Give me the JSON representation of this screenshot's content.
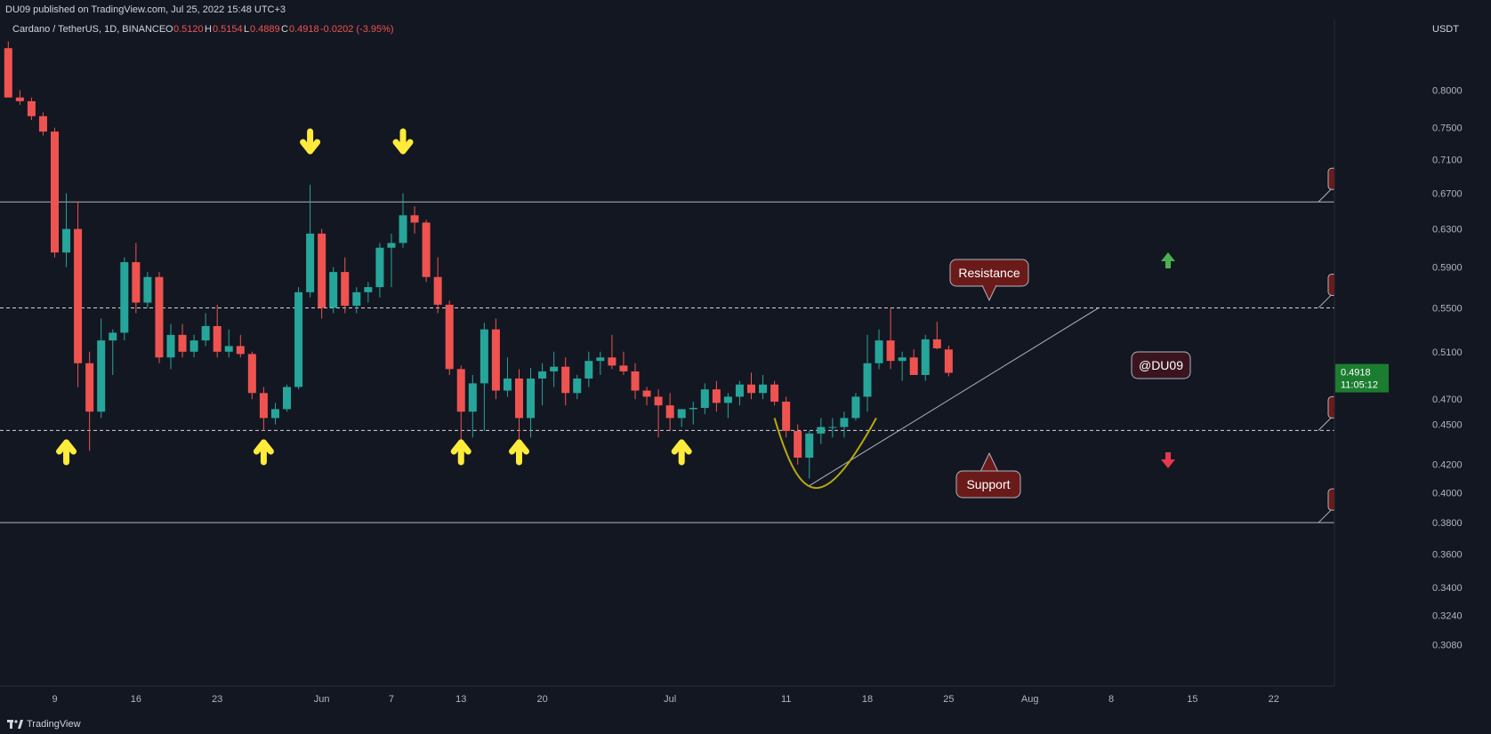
{
  "header": {
    "published": "DU09 published on TradingView.com, Jul 25, 2022 15:48 UTC+3"
  },
  "legend": {
    "symbol": "Cardano / TetherUS, 1D, BINANCE",
    "o_label": "O",
    "o_value": "0.5120",
    "h_label": "H",
    "h_value": "0.5154",
    "l_label": "L",
    "l_value": "0.4889",
    "c_label": "C",
    "c_value": "0.4918",
    "change": "-0.0202 (-3.95%)"
  },
  "footer": {
    "brand": "TradingView"
  },
  "colors": {
    "up": "#26a69a",
    "down": "#ef5350",
    "arrow": "#ffeb3b",
    "label_bg": "#6b1a1a",
    "price_badge": "#1b7d2f"
  },
  "annotations": {
    "resistance": "Resistance",
    "support": "Support",
    "author": "@DU09",
    "levels": [
      "0.6600",
      "0.5500",
      "0.4454",
      "0.3800"
    ],
    "arrows_down_x": [
      "2022-05-31",
      "2022-06-08"
    ],
    "arrows_up_x": [
      "2022-05-10",
      "2022-05-27",
      "2022-06-13",
      "2022-06-18",
      "2022-07-02"
    ]
  },
  "price_badge": {
    "price": "0.4918",
    "countdown": "11:05:12"
  },
  "chart_data": {
    "type": "candlestick",
    "title": "Cardano / TetherUS, 1D, BINANCE",
    "y_unit": "USDT",
    "y_scale": "log",
    "ylim": [
      0.29,
      0.86
    ],
    "y_ticks": [
      "0.8000",
      "0.7500",
      "0.7100",
      "0.6700",
      "0.6300",
      "0.5900",
      "0.5500",
      "0.5100",
      "0.4700",
      "0.4500",
      "0.4200",
      "0.4000",
      "0.3800",
      "0.3600",
      "0.3400",
      "0.3240",
      "0.3080"
    ],
    "x_ticks": [
      {
        "label": "9",
        "date": "2022-05-09"
      },
      {
        "label": "16",
        "date": "2022-05-16"
      },
      {
        "label": "23",
        "date": "2022-05-23"
      },
      {
        "label": "Jun",
        "date": "2022-06-01"
      },
      {
        "label": "7",
        "date": "2022-06-07"
      },
      {
        "label": "13",
        "date": "2022-06-13"
      },
      {
        "label": "20",
        "date": "2022-06-20"
      },
      {
        "label": "Jul",
        "date": "2022-07-01"
      },
      {
        "label": "11",
        "date": "2022-07-11"
      },
      {
        "label": "18",
        "date": "2022-07-18"
      },
      {
        "label": "25",
        "date": "2022-07-25"
      },
      {
        "label": "Aug",
        "date": "2022-08-01"
      },
      {
        "label": "8",
        "date": "2022-08-08"
      },
      {
        "label": "15",
        "date": "2022-08-15"
      },
      {
        "label": "22",
        "date": "2022-08-22"
      }
    ],
    "horizontal_levels": [
      {
        "value": 0.66,
        "style": "solid",
        "label": "0.6600"
      },
      {
        "value": 0.55,
        "style": "dashed",
        "label": "0.5500"
      },
      {
        "value": 0.4454,
        "style": "dashed",
        "label": "0.4454"
      },
      {
        "value": 0.38,
        "style": "solid",
        "label": "0.3800"
      }
    ],
    "candles": [
      {
        "d": "2022-05-05",
        "o": 0.86,
        "h": 0.87,
        "l": 0.79,
        "c": 0.79
      },
      {
        "d": "2022-05-06",
        "o": 0.79,
        "h": 0.8,
        "l": 0.78,
        "c": 0.785
      },
      {
        "d": "2022-05-07",
        "o": 0.785,
        "h": 0.79,
        "l": 0.76,
        "c": 0.765
      },
      {
        "d": "2022-05-08",
        "o": 0.765,
        "h": 0.77,
        "l": 0.74,
        "c": 0.745
      },
      {
        "d": "2022-05-09",
        "o": 0.745,
        "h": 0.75,
        "l": 0.6,
        "c": 0.605
      },
      {
        "d": "2022-05-10",
        "o": 0.605,
        "h": 0.67,
        "l": 0.59,
        "c": 0.63
      },
      {
        "d": "2022-05-11",
        "o": 0.63,
        "h": 0.66,
        "l": 0.48,
        "c": 0.5
      },
      {
        "d": "2022-05-12",
        "o": 0.5,
        "h": 0.51,
        "l": 0.43,
        "c": 0.46
      },
      {
        "d": "2022-05-13",
        "o": 0.46,
        "h": 0.54,
        "l": 0.455,
        "c": 0.52
      },
      {
        "d": "2022-05-14",
        "o": 0.52,
        "h": 0.53,
        "l": 0.49,
        "c": 0.527
      },
      {
        "d": "2022-05-15",
        "o": 0.527,
        "h": 0.6,
        "l": 0.52,
        "c": 0.595
      },
      {
        "d": "2022-05-16",
        "o": 0.595,
        "h": 0.615,
        "l": 0.545,
        "c": 0.555
      },
      {
        "d": "2022-05-17",
        "o": 0.555,
        "h": 0.585,
        "l": 0.55,
        "c": 0.58
      },
      {
        "d": "2022-05-18",
        "o": 0.58,
        "h": 0.585,
        "l": 0.5,
        "c": 0.505
      },
      {
        "d": "2022-05-19",
        "o": 0.505,
        "h": 0.535,
        "l": 0.495,
        "c": 0.525
      },
      {
        "d": "2022-05-20",
        "o": 0.525,
        "h": 0.535,
        "l": 0.505,
        "c": 0.51
      },
      {
        "d": "2022-05-21",
        "o": 0.51,
        "h": 0.525,
        "l": 0.505,
        "c": 0.52
      },
      {
        "d": "2022-05-22",
        "o": 0.52,
        "h": 0.545,
        "l": 0.515,
        "c": 0.533
      },
      {
        "d": "2022-05-23",
        "o": 0.533,
        "h": 0.553,
        "l": 0.505,
        "c": 0.51
      },
      {
        "d": "2022-05-24",
        "o": 0.51,
        "h": 0.53,
        "l": 0.505,
        "c": 0.515
      },
      {
        "d": "2022-05-25",
        "o": 0.515,
        "h": 0.525,
        "l": 0.505,
        "c": 0.508
      },
      {
        "d": "2022-05-26",
        "o": 0.508,
        "h": 0.51,
        "l": 0.47,
        "c": 0.475
      },
      {
        "d": "2022-05-27",
        "o": 0.475,
        "h": 0.48,
        "l": 0.445,
        "c": 0.455
      },
      {
        "d": "2022-05-28",
        "o": 0.455,
        "h": 0.467,
        "l": 0.45,
        "c": 0.462
      },
      {
        "d": "2022-05-29",
        "o": 0.462,
        "h": 0.482,
        "l": 0.46,
        "c": 0.48
      },
      {
        "d": "2022-05-30",
        "o": 0.48,
        "h": 0.57,
        "l": 0.478,
        "c": 0.565
      },
      {
        "d": "2022-05-31",
        "o": 0.565,
        "h": 0.68,
        "l": 0.56,
        "c": 0.625
      },
      {
        "d": "2022-06-01",
        "o": 0.625,
        "h": 0.63,
        "l": 0.54,
        "c": 0.55
      },
      {
        "d": "2022-06-02",
        "o": 0.55,
        "h": 0.59,
        "l": 0.545,
        "c": 0.585
      },
      {
        "d": "2022-06-03",
        "o": 0.585,
        "h": 0.6,
        "l": 0.545,
        "c": 0.552
      },
      {
        "d": "2022-06-04",
        "o": 0.552,
        "h": 0.57,
        "l": 0.545,
        "c": 0.565
      },
      {
        "d": "2022-06-05",
        "o": 0.565,
        "h": 0.575,
        "l": 0.555,
        "c": 0.57
      },
      {
        "d": "2022-06-06",
        "o": 0.57,
        "h": 0.615,
        "l": 0.56,
        "c": 0.61
      },
      {
        "d": "2022-06-07",
        "o": 0.61,
        "h": 0.625,
        "l": 0.57,
        "c": 0.615
      },
      {
        "d": "2022-06-08",
        "o": 0.615,
        "h": 0.67,
        "l": 0.61,
        "c": 0.645
      },
      {
        "d": "2022-06-09",
        "o": 0.645,
        "h": 0.655,
        "l": 0.625,
        "c": 0.637
      },
      {
        "d": "2022-06-10",
        "o": 0.637,
        "h": 0.64,
        "l": 0.575,
        "c": 0.58
      },
      {
        "d": "2022-06-11",
        "o": 0.58,
        "h": 0.6,
        "l": 0.545,
        "c": 0.553
      },
      {
        "d": "2022-06-12",
        "o": 0.553,
        "h": 0.557,
        "l": 0.49,
        "c": 0.495
      },
      {
        "d": "2022-06-13",
        "o": 0.495,
        "h": 0.498,
        "l": 0.435,
        "c": 0.46
      },
      {
        "d": "2022-06-14",
        "o": 0.46,
        "h": 0.49,
        "l": 0.44,
        "c": 0.483
      },
      {
        "d": "2022-06-15",
        "o": 0.483,
        "h": 0.536,
        "l": 0.445,
        "c": 0.53
      },
      {
        "d": "2022-06-16",
        "o": 0.53,
        "h": 0.54,
        "l": 0.47,
        "c": 0.477
      },
      {
        "d": "2022-06-17",
        "o": 0.477,
        "h": 0.505,
        "l": 0.472,
        "c": 0.487
      },
      {
        "d": "2022-06-18",
        "o": 0.487,
        "h": 0.495,
        "l": 0.435,
        "c": 0.455
      },
      {
        "d": "2022-06-19",
        "o": 0.455,
        "h": 0.496,
        "l": 0.44,
        "c": 0.487
      },
      {
        "d": "2022-06-20",
        "o": 0.487,
        "h": 0.5,
        "l": 0.465,
        "c": 0.493
      },
      {
        "d": "2022-06-21",
        "o": 0.493,
        "h": 0.51,
        "l": 0.48,
        "c": 0.497
      },
      {
        "d": "2022-06-22",
        "o": 0.497,
        "h": 0.505,
        "l": 0.465,
        "c": 0.475
      },
      {
        "d": "2022-06-23",
        "o": 0.475,
        "h": 0.49,
        "l": 0.47,
        "c": 0.487
      },
      {
        "d": "2022-06-24",
        "o": 0.487,
        "h": 0.51,
        "l": 0.48,
        "c": 0.502
      },
      {
        "d": "2022-06-25",
        "o": 0.502,
        "h": 0.51,
        "l": 0.49,
        "c": 0.505
      },
      {
        "d": "2022-06-26",
        "o": 0.505,
        "h": 0.525,
        "l": 0.495,
        "c": 0.498
      },
      {
        "d": "2022-06-27",
        "o": 0.498,
        "h": 0.51,
        "l": 0.49,
        "c": 0.493
      },
      {
        "d": "2022-06-28",
        "o": 0.493,
        "h": 0.5,
        "l": 0.47,
        "c": 0.477
      },
      {
        "d": "2022-06-29",
        "o": 0.477,
        "h": 0.48,
        "l": 0.465,
        "c": 0.472
      },
      {
        "d": "2022-06-30",
        "o": 0.472,
        "h": 0.478,
        "l": 0.44,
        "c": 0.465
      },
      {
        "d": "2022-07-01",
        "o": 0.465,
        "h": 0.475,
        "l": 0.445,
        "c": 0.455
      },
      {
        "d": "2022-07-02",
        "o": 0.455,
        "h": 0.46,
        "l": 0.448,
        "c": 0.462
      },
      {
        "d": "2022-07-03",
        "o": 0.462,
        "h": 0.468,
        "l": 0.45,
        "c": 0.463
      },
      {
        "d": "2022-07-04",
        "o": 0.463,
        "h": 0.483,
        "l": 0.458,
        "c": 0.478
      },
      {
        "d": "2022-07-05",
        "o": 0.478,
        "h": 0.485,
        "l": 0.46,
        "c": 0.467
      },
      {
        "d": "2022-07-06",
        "o": 0.467,
        "h": 0.475,
        "l": 0.455,
        "c": 0.472
      },
      {
        "d": "2022-07-07",
        "o": 0.472,
        "h": 0.485,
        "l": 0.465,
        "c": 0.482
      },
      {
        "d": "2022-07-08",
        "o": 0.482,
        "h": 0.492,
        "l": 0.47,
        "c": 0.475
      },
      {
        "d": "2022-07-09",
        "o": 0.475,
        "h": 0.49,
        "l": 0.47,
        "c": 0.482
      },
      {
        "d": "2022-07-10",
        "o": 0.482,
        "h": 0.485,
        "l": 0.465,
        "c": 0.468
      },
      {
        "d": "2022-07-11",
        "o": 0.468,
        "h": 0.472,
        "l": 0.44,
        "c": 0.445
      },
      {
        "d": "2022-07-12",
        "o": 0.445,
        "h": 0.45,
        "l": 0.42,
        "c": 0.425
      },
      {
        "d": "2022-07-13",
        "o": 0.425,
        "h": 0.445,
        "l": 0.41,
        "c": 0.443
      },
      {
        "d": "2022-07-14",
        "o": 0.443,
        "h": 0.455,
        "l": 0.435,
        "c": 0.448
      },
      {
        "d": "2022-07-15",
        "o": 0.448,
        "h": 0.455,
        "l": 0.44,
        "c": 0.448
      },
      {
        "d": "2022-07-16",
        "o": 0.448,
        "h": 0.46,
        "l": 0.44,
        "c": 0.455
      },
      {
        "d": "2022-07-17",
        "o": 0.455,
        "h": 0.475,
        "l": 0.453,
        "c": 0.472
      },
      {
        "d": "2022-07-18",
        "o": 0.472,
        "h": 0.525,
        "l": 0.46,
        "c": 0.5
      },
      {
        "d": "2022-07-19",
        "o": 0.5,
        "h": 0.53,
        "l": 0.495,
        "c": 0.52
      },
      {
        "d": "2022-07-20",
        "o": 0.52,
        "h": 0.55,
        "l": 0.495,
        "c": 0.502
      },
      {
        "d": "2022-07-21",
        "o": 0.502,
        "h": 0.51,
        "l": 0.485,
        "c": 0.505
      },
      {
        "d": "2022-07-22",
        "o": 0.505,
        "h": 0.512,
        "l": 0.49,
        "c": 0.49
      },
      {
        "d": "2022-07-23",
        "o": 0.49,
        "h": 0.525,
        "l": 0.485,
        "c": 0.521
      },
      {
        "d": "2022-07-24",
        "o": 0.521,
        "h": 0.537,
        "l": 0.512,
        "c": 0.513
      },
      {
        "d": "2022-07-25",
        "o": 0.512,
        "h": 0.5154,
        "l": 0.4889,
        "c": 0.4918
      }
    ]
  }
}
